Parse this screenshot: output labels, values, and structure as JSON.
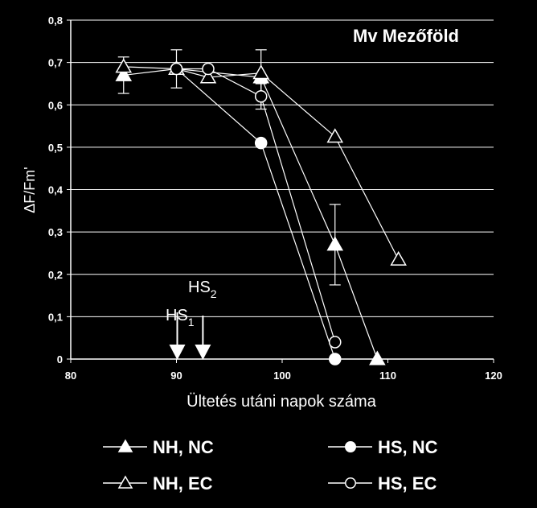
{
  "chart_data": {
    "type": "line",
    "title": "Mv Mezőföld",
    "xlabel": "Ültetés utáni napok száma",
    "ylabel": "ΔF/Fm'",
    "xlim": [
      80,
      120
    ],
    "ylim": [
      0,
      0.8
    ],
    "x_ticks": [
      "80",
      "90",
      "100",
      "110",
      "120"
    ],
    "y_ticks": [
      "0",
      "0,1",
      "0,2",
      "0,3",
      "0,4",
      "0,5",
      "0,6",
      "0,7",
      "0,8"
    ],
    "grid": "horizontal",
    "legend_position": "bottom",
    "series": [
      {
        "name": "NH, NC",
        "marker": "filled-triangle",
        "x": [
          85,
          90,
          98,
          105,
          109
        ],
        "y": [
          0.67,
          0.685,
          0.665,
          0.27,
          0
        ],
        "err": [
          0.043,
          0.045,
          0.065,
          0.095,
          0
        ]
      },
      {
        "name": "HS, NC",
        "marker": "filled-circle",
        "x": [
          90,
          98,
          105
        ],
        "y": [
          0.685,
          0.51,
          0.0
        ],
        "err": [
          0,
          0,
          0
        ]
      },
      {
        "name": "NH, EC",
        "marker": "open-triangle",
        "x": [
          85,
          90,
          93,
          98,
          105,
          111
        ],
        "y": [
          0.69,
          0.685,
          0.665,
          0.675,
          0.525,
          0.235
        ],
        "err": [
          0,
          0,
          0,
          0,
          0,
          0
        ]
      },
      {
        "name": "HS, EC",
        "marker": "open-circle",
        "x": [
          90,
          93,
          98,
          105
        ],
        "y": [
          0.685,
          0.685,
          0.62,
          0.04
        ],
        "err": [
          0,
          0,
          0.03,
          0
        ]
      }
    ],
    "annotations": [
      {
        "label": "HS",
        "sub": "1",
        "x": 90
      },
      {
        "label": "HS",
        "sub": "2",
        "x": 92.5
      }
    ]
  }
}
